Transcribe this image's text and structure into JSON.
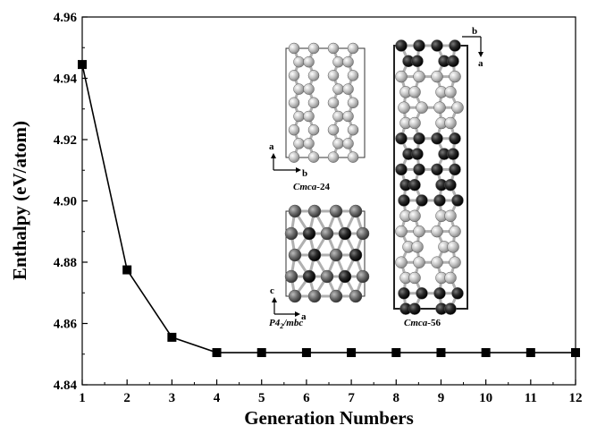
{
  "chart_data": {
    "type": "line",
    "xlabel": "Generation Numbers",
    "ylabel": "Enthalpy (eV/atom)",
    "xlim": [
      1,
      12
    ],
    "ylim": [
      4.84,
      4.96
    ],
    "x_ticks": [
      "1",
      "2",
      "3",
      "4",
      "5",
      "6",
      "7",
      "8",
      "9",
      "10",
      "11",
      "12"
    ],
    "y_ticks": [
      "4.84",
      "4.86",
      "4.88",
      "4.90",
      "4.92",
      "4.94",
      "4.96"
    ],
    "grid": false,
    "series": [
      {
        "marker": "square",
        "color": "#000000",
        "x": [
          1,
          2,
          3,
          4,
          5,
          6,
          7,
          8,
          9,
          10,
          11,
          12
        ],
        "y": [
          4.9445,
          4.8775,
          4.8555,
          4.8505,
          4.8505,
          4.8505,
          4.8505,
          4.8505,
          4.8505,
          4.8505,
          4.8505,
          4.8505
        ]
      }
    ],
    "annotations": [
      {
        "name": "Cmca",
        "suffix": "-24",
        "axes": [
          "a",
          "b"
        ]
      },
      {
        "name": "P4",
        "sub": "2",
        "after": "/mbc",
        "axes": [
          "c",
          "a"
        ]
      },
      {
        "name": "Cmca",
        "suffix": "-56",
        "axes": [
          "b",
          "a"
        ]
      }
    ]
  }
}
